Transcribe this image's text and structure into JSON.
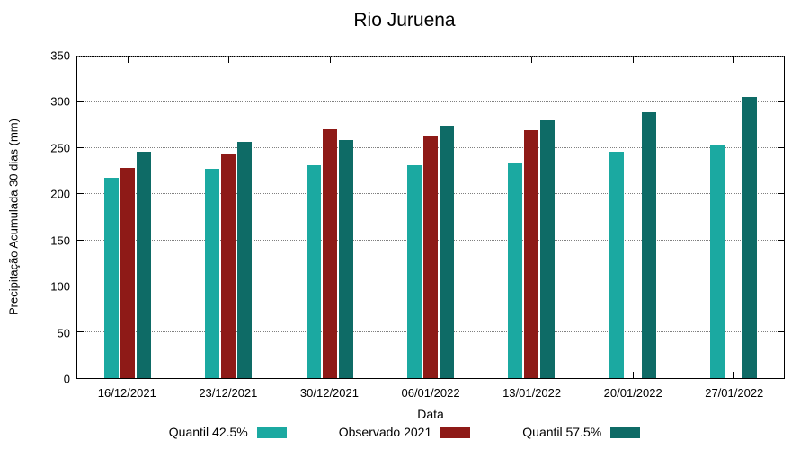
{
  "chart_data": {
    "type": "bar",
    "title": "Rio Juruena",
    "xlabel": "Data",
    "ylabel": "Precipitação Acumulada 30 dias (mm)",
    "ylim": [
      0,
      350
    ],
    "ytick_step": 50,
    "grid": true,
    "legend_position": "bottom",
    "categories": [
      "16/12/2021",
      "23/12/2021",
      "30/12/2021",
      "06/01/2022",
      "13/01/2022",
      "20/01/2022",
      "27/01/2022"
    ],
    "series": [
      {
        "name": "Quantil 42.5%",
        "color": "#1ba9a1",
        "values": [
          218,
          228,
          232,
          232,
          234,
          246,
          254
        ]
      },
      {
        "name": "Observado 2021",
        "color": "#8e1a17",
        "values": [
          229,
          244,
          271,
          264,
          270,
          null,
          null
        ]
      },
      {
        "name": "Quantil 57.5%",
        "color": "#0e6b66",
        "values": [
          246,
          257,
          259,
          275,
          281,
          289,
          306
        ]
      }
    ]
  }
}
